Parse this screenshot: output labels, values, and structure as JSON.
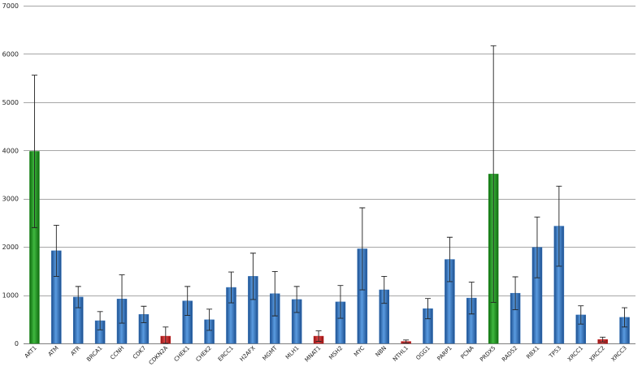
{
  "chart_data": {
    "type": "bar",
    "title": "",
    "xlabel": "",
    "ylabel": "",
    "ylim": [
      0,
      7000
    ],
    "yticks": [
      0,
      1000,
      2000,
      3000,
      4000,
      5000,
      6000,
      7000
    ],
    "grid": true,
    "legend": "none",
    "colors": {
      "blue": "#2f6db5",
      "green": "#1f8f1f",
      "red": "#c81e1e"
    },
    "categories": [
      "AKT1",
      "ATM",
      "ATR",
      "BRCA1",
      "CCNH",
      "CDK7",
      "CDKN2A",
      "CHEK1",
      "CHEK2",
      "ERCC1",
      "H2AFX",
      "MGMT",
      "MLH1",
      "MNAT1",
      "MSH2",
      "MYC",
      "NBN",
      "NTHL1",
      "OGG1",
      "PARP1",
      "PCNA",
      "PRDX5",
      "RAD52",
      "RBX1",
      "TP53",
      "XRCC1",
      "XRCC2",
      "XRCC3"
    ],
    "values": [
      3980,
      1920,
      960,
      470,
      920,
      600,
      150,
      880,
      490,
      1160,
      1390,
      1030,
      910,
      150,
      860,
      1960,
      1110,
      40,
      720,
      1740,
      940,
      3510,
      1040,
      1990,
      2430,
      590,
      80,
      540
    ],
    "errors": [
      1580,
      530,
      220,
      190,
      500,
      170,
      190,
      300,
      220,
      320,
      480,
      460,
      270,
      110,
      340,
      850,
      280,
      30,
      210,
      460,
      330,
      2660,
      340,
      630,
      830,
      190,
      50,
      200
    ],
    "bar_color": [
      "green",
      "blue",
      "blue",
      "blue",
      "blue",
      "blue",
      "red",
      "blue",
      "blue",
      "blue",
      "blue",
      "blue",
      "blue",
      "red",
      "blue",
      "blue",
      "blue",
      "red",
      "blue",
      "blue",
      "blue",
      "green",
      "blue",
      "blue",
      "blue",
      "blue",
      "red",
      "blue"
    ]
  }
}
